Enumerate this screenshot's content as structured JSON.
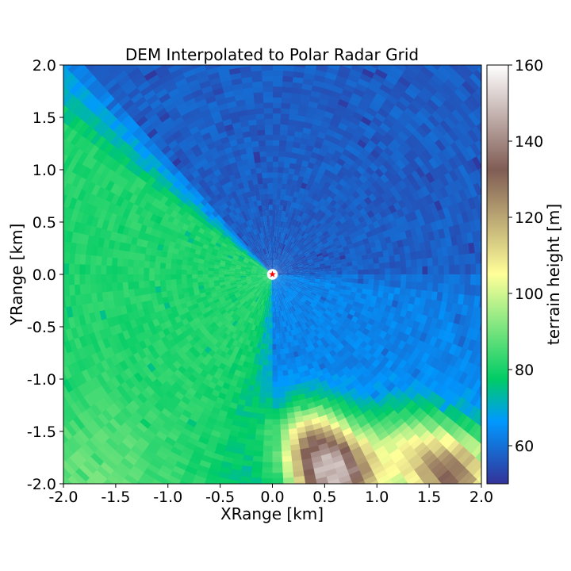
{
  "chart_data": {
    "type": "heatmap",
    "title": "DEM Interpolated to Polar Radar Grid",
    "xlabel": "XRange [km]",
    "ylabel": "YRange [km]",
    "xlim": [
      -2.0,
      2.0
    ],
    "ylim": [
      -2.0,
      2.0
    ],
    "xticks": [
      "-2.0",
      "-1.5",
      "-1.0",
      "-0.5",
      "0.0",
      "0.5",
      "1.0",
      "1.5",
      "2.0"
    ],
    "yticks": [
      "-2.0",
      "-1.5",
      "-1.0",
      "-0.5",
      "0.0",
      "0.5",
      "1.0",
      "1.5",
      "2.0"
    ],
    "grid": "polar (range × azimuth bins)",
    "colormap": "terrain",
    "colorbar": {
      "label": "terrain height [m]",
      "range": [
        50,
        160
      ],
      "ticks": [
        "60",
        "80",
        "100",
        "120",
        "140",
        "160"
      ]
    },
    "radar_site": {
      "x": 0.0,
      "y": 0.0,
      "marker": "red star",
      "color": "#ff0000"
    },
    "terrain_regions": [
      {
        "area": "north half (upper left to right)",
        "height_m": [
          55,
          62
        ]
      },
      {
        "area": "east / southeast",
        "height_m": [
          60,
          66
        ]
      },
      {
        "area": "west / southwest",
        "height_m": [
          75,
          88
        ]
      },
      {
        "area": "south-southeast hills near (0.5, -1.9)",
        "height_m": [
          110,
          158
        ]
      },
      {
        "area": "southeast hills near (1.7, -1.9)",
        "height_m": [
          100,
          145
        ]
      }
    ]
  }
}
